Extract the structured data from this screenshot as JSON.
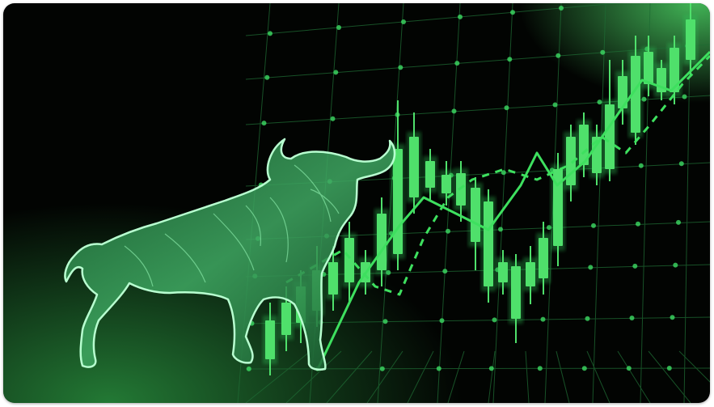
{
  "image": {
    "subject": "bull-with-rising-candlestick-chart",
    "colors": {
      "background": "#020402",
      "grid": "#1f6b34",
      "candle": "#4fe06b",
      "candle_glow": "#2fbf55",
      "line": "#3ee05f",
      "bull_outline": "#b8ffd0",
      "bull_fill": "#2c8a4a"
    }
  }
}
